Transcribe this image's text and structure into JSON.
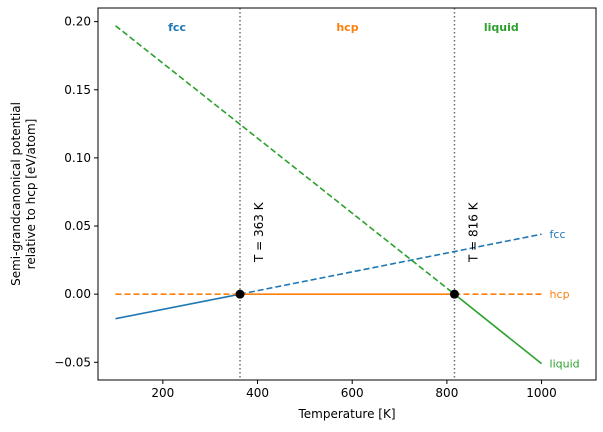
{
  "chart_data": {
    "type": "line",
    "xlabel": "Temperature [K]",
    "ylabel_line1": "Semi-grandcanonical potential",
    "ylabel_line2": "relative to hcp [eV/atom]",
    "xlim": [
      63,
      1115
    ],
    "ylim": [
      -0.063,
      0.21
    ],
    "x_ticks": [
      200,
      400,
      600,
      800,
      1000
    ],
    "y_ticks": [
      -0.05,
      0.0,
      0.05,
      0.1,
      0.15,
      0.2
    ],
    "x_tick_labels": [
      "200",
      "400",
      "600",
      "800",
      "1000"
    ],
    "y_tick_labels": [
      "−0.05",
      "0.00",
      "0.05",
      "0.10",
      "0.15",
      "0.20"
    ],
    "grid": false,
    "series": [
      {
        "name": "fcc",
        "color": "#1f77b4",
        "x": [
          100,
          363,
          1000
        ],
        "y": [
          -0.018,
          0.0,
          0.044
        ],
        "solid_range": [
          100,
          363
        ],
        "dashed_range": [
          363,
          1000
        ]
      },
      {
        "name": "hcp",
        "color": "#ff7f0e",
        "x": [
          100,
          363,
          816,
          1000
        ],
        "y": [
          0.0,
          0.0,
          0.0,
          0.0
        ],
        "solid_range": [
          363,
          816
        ],
        "dashed_range_low": [
          100,
          363
        ],
        "dashed_range_high": [
          816,
          1000
        ]
      },
      {
        "name": "liquid",
        "color": "#2ca02c",
        "x": [
          100,
          816,
          1000
        ],
        "y": [
          0.197,
          0.0,
          -0.051
        ],
        "solid_range": [
          816,
          1000
        ],
        "dashed_range": [
          100,
          816
        ]
      }
    ],
    "transitions": [
      {
        "T": 363,
        "label": "T = 363 K",
        "y": 0.0
      },
      {
        "T": 816,
        "label": "T = 816 K",
        "y": 0.0
      }
    ],
    "phase_regions": [
      {
        "label": "fcc",
        "x": 230,
        "color": "#1f77b4"
      },
      {
        "label": "hcp",
        "x": 590,
        "color": "#ff7f0e"
      },
      {
        "label": "liquid",
        "x": 915,
        "color": "#2ca02c"
      }
    ]
  }
}
